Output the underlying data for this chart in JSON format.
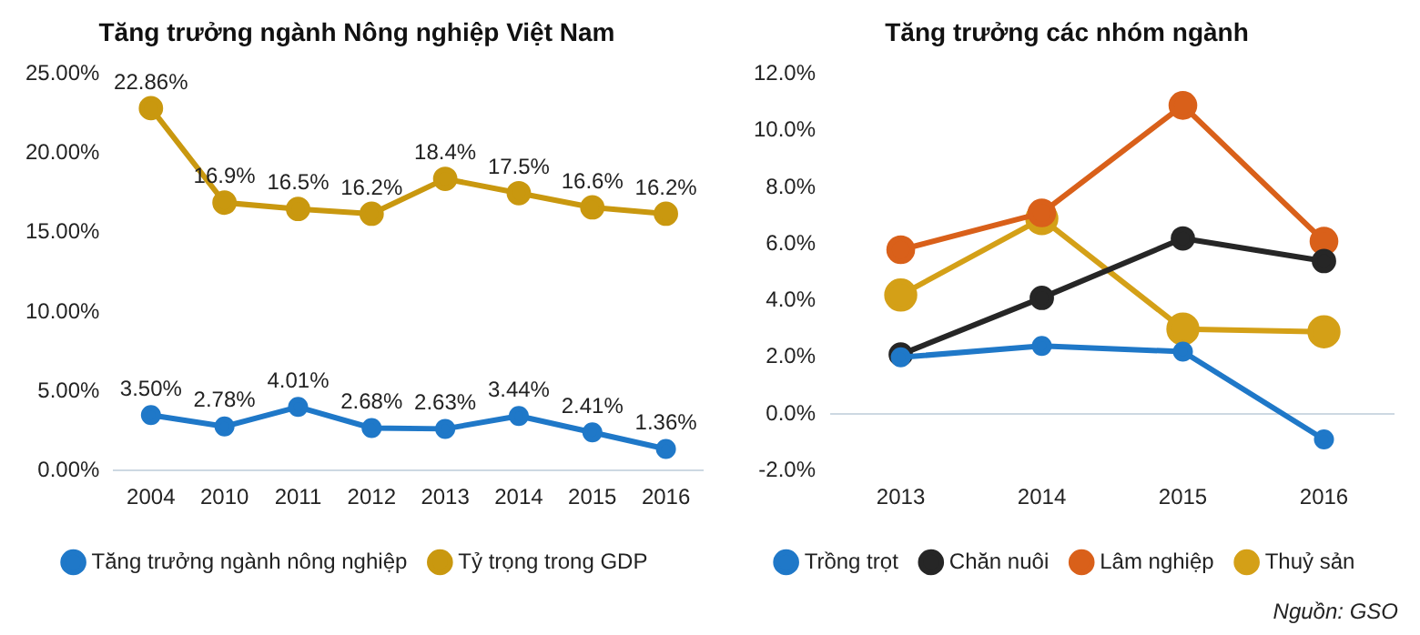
{
  "chart_data": [
    {
      "type": "line",
      "title": "Tăng trưởng ngành Nông nghiệp Việt Nam",
      "categories": [
        "2004",
        "2010",
        "2011",
        "2012",
        "2013",
        "2014",
        "2015",
        "2016"
      ],
      "series": [
        {
          "name": "Tăng trưởng ngành nông nghiệp",
          "color": "#1f78c8",
          "values": [
            3.5,
            2.78,
            4.01,
            2.68,
            2.63,
            3.44,
            2.41,
            1.36
          ],
          "value_labels": [
            "3.50%",
            "2.78%",
            "4.01%",
            "2.68%",
            "2.63%",
            "3.44%",
            "2.41%",
            "1.36%"
          ]
        },
        {
          "name": "Tỷ trọng trong GDP",
          "color": "#c9980f",
          "values": [
            22.86,
            16.9,
            16.5,
            16.2,
            18.4,
            17.5,
            16.6,
            16.2
          ],
          "value_labels": [
            "22.86%",
            "16.9%",
            "16.5%",
            "16.2%",
            "18.4%",
            "17.5%",
            "16.6%",
            "16.2%"
          ]
        }
      ],
      "ylim": [
        0,
        25
      ],
      "yticks": [
        {
          "value": 0,
          "label": "0.00%"
        },
        {
          "value": 5,
          "label": "5.00%"
        },
        {
          "value": 10,
          "label": "10.00%"
        },
        {
          "value": 15,
          "label": "15.00%"
        },
        {
          "value": 20,
          "label": "20.00%"
        },
        {
          "value": 25,
          "label": "25.00%"
        }
      ],
      "grid": false,
      "legend": "bottom",
      "marker": "circle"
    },
    {
      "type": "line",
      "title": "Tăng trưởng các nhóm ngành",
      "categories": [
        "2013",
        "2014",
        "2015",
        "2016"
      ],
      "series": [
        {
          "name": "Trồng trọt",
          "color": "#1f78c8",
          "values": [
            2.0,
            2.4,
            2.2,
            -0.9
          ]
        },
        {
          "name": "Chăn nuôi",
          "color": "#262626",
          "values": [
            2.1,
            4.1,
            6.2,
            5.4
          ]
        },
        {
          "name": "Lâm nghiệp",
          "color": "#d9601a",
          "values": [
            5.8,
            7.1,
            10.9,
            6.1
          ]
        },
        {
          "name": "Thuỷ sản",
          "color": "#d4a017",
          "values": [
            4.2,
            6.9,
            3.0,
            2.9
          ]
        }
      ],
      "ylim": [
        -2,
        12
      ],
      "yticks": [
        {
          "value": -2,
          "label": "-2.0%"
        },
        {
          "value": 0,
          "label": "0.0%"
        },
        {
          "value": 2,
          "label": "2.0%"
        },
        {
          "value": 4,
          "label": "4.0%"
        },
        {
          "value": 6,
          "label": "6.0%"
        },
        {
          "value": 8,
          "label": "8.0%"
        },
        {
          "value": 10,
          "label": "10.0%"
        },
        {
          "value": 12,
          "label": "12.0%"
        }
      ],
      "grid": false,
      "legend": "bottom",
      "marker": "circle",
      "ref_lines": [
        {
          "axis": "y",
          "value": 0,
          "color": "#cdd8e2"
        }
      ],
      "annotations": [
        "Nguồn: GSO"
      ]
    }
  ]
}
